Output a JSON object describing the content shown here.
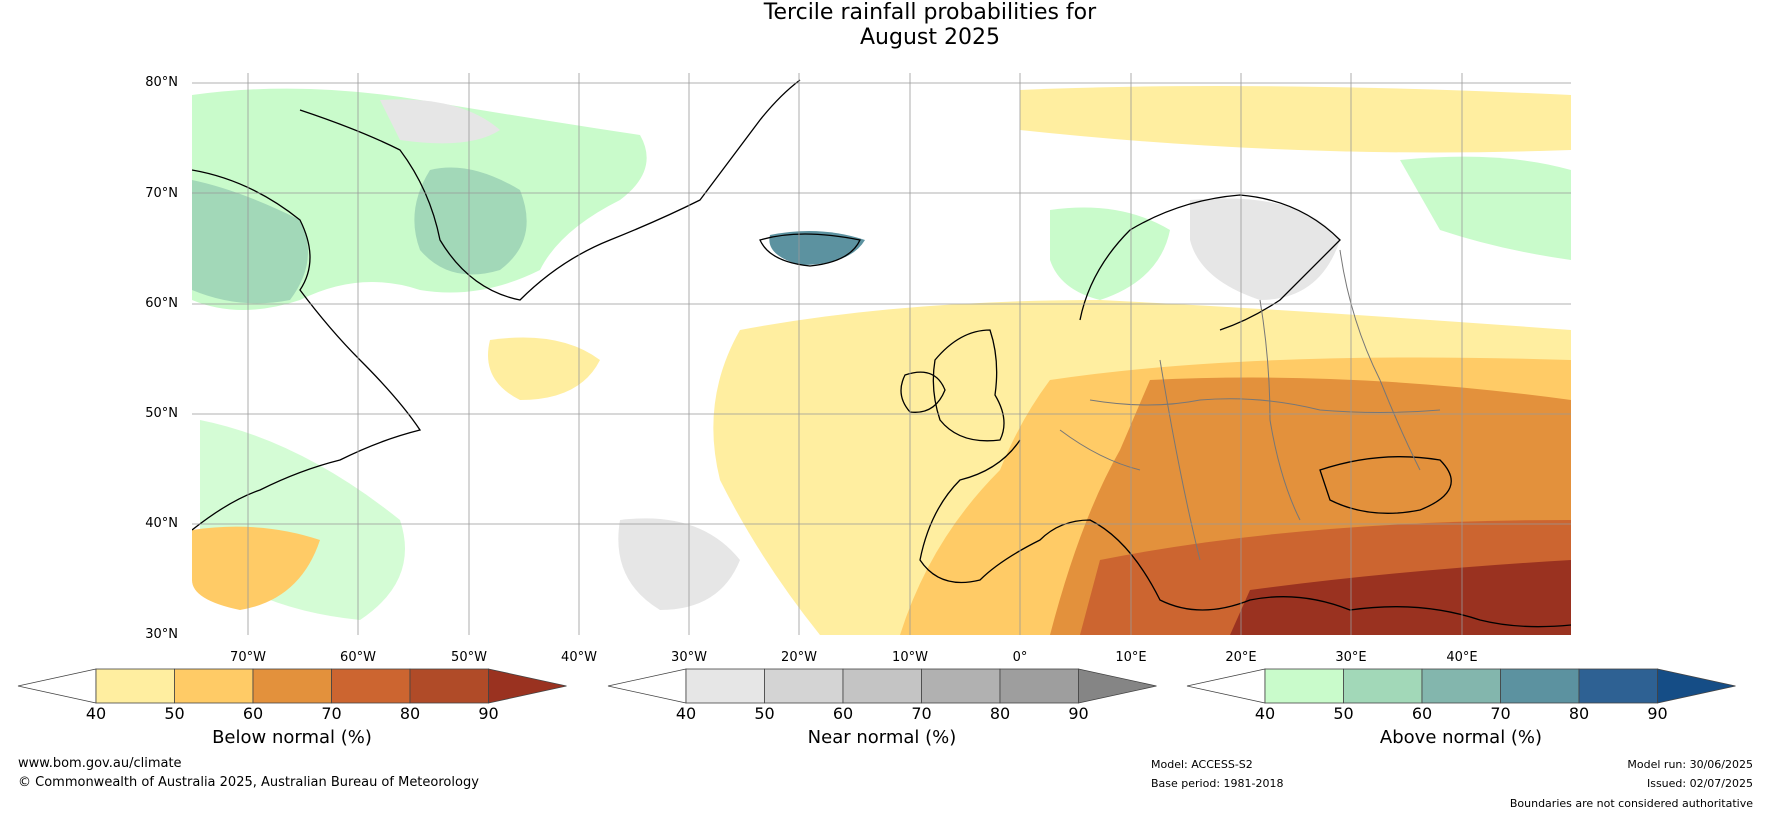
{
  "title": {
    "line1": "Tercile rainfall probabilities for",
    "line2": "August 2025"
  },
  "map": {
    "lat_labels": [
      "80°N",
      "70°N",
      "60°N",
      "50°N",
      "40°N",
      "30°N"
    ],
    "lon_labels": [
      "70°W",
      "60°W",
      "50°W",
      "40°W",
      "30°W",
      "20°W",
      "10°W",
      "0°",
      "10°E",
      "20°E",
      "30°E",
      "40°E"
    ],
    "extent": {
      "lon": [
        -75,
        50
      ],
      "lat": [
        30,
        81
      ]
    }
  },
  "colorbars": [
    {
      "title": "Below normal (%)",
      "ticks": [
        "40",
        "50",
        "60",
        "70",
        "80",
        "90"
      ],
      "colors": [
        "#ffeea0",
        "#ffcb66",
        "#e3913c",
        "#cc6530",
        "#b04b28",
        "#9a3220"
      ]
    },
    {
      "title": "Near normal (%)",
      "ticks": [
        "40",
        "50",
        "60",
        "70",
        "80",
        "90"
      ],
      "colors": [
        "#e6e6e6",
        "#d4d4d4",
        "#c4c4c4",
        "#b1b1b1",
        "#9e9e9e",
        "#858585"
      ]
    },
    {
      "title": "Above normal (%)",
      "ticks": [
        "40",
        "50",
        "60",
        "70",
        "80",
        "90"
      ],
      "colors": [
        "#c9fbcb",
        "#a2d8b8",
        "#83b6ad",
        "#5c92a0",
        "#2e6193",
        "#154d86"
      ]
    }
  ],
  "footer": {
    "url": "www.bom.gov.au/climate",
    "copyright": "© Commonwealth of Australia 2025, Australian Bureau of Meteorology",
    "model": "Model: ACCESS-S2",
    "base_period": "Base period: 1981-2018",
    "model_run": "Model run: 30/06/2025",
    "issued": "Issued: 02/07/2025",
    "disclaimer": "Boundaries are not considered authoritative"
  }
}
